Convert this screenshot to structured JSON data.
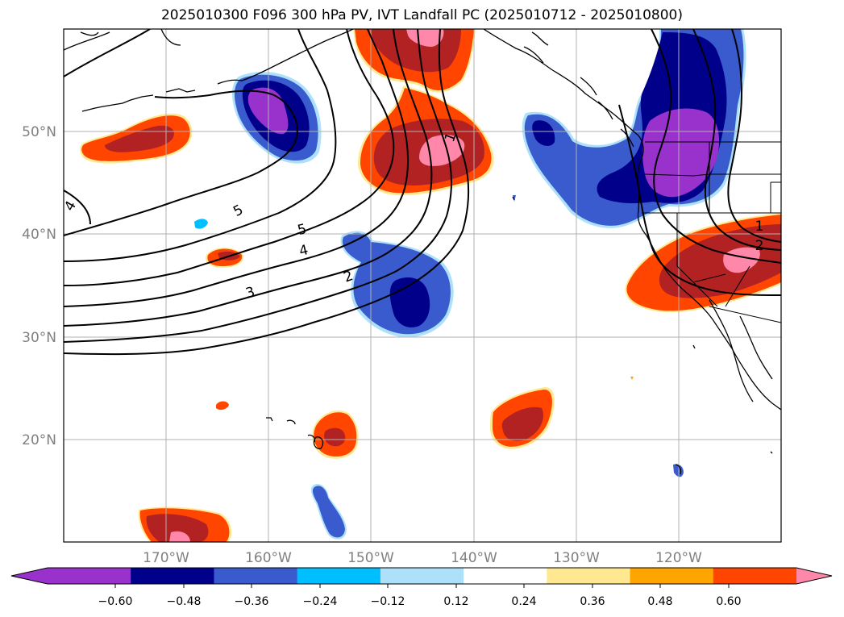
{
  "title": "2025010300 F096 300 hPa PV, IVT Landfall PC (2025010712 - 2025010800)",
  "map": {
    "lon_range": [
      -180,
      -110
    ],
    "lat_range": [
      10,
      60
    ],
    "lon_ticks": [
      "170°W",
      "160°W",
      "150°W",
      "140°W",
      "130°W",
      "120°W"
    ],
    "lat_ticks": [
      "50°N",
      "40°N",
      "30°N",
      "20°N"
    ],
    "gridlines": true,
    "contour_labels": [
      "5",
      "5",
      "4",
      "3",
      "2",
      "1",
      "2",
      "1",
      "4"
    ]
  },
  "colorbar": {
    "ticks": [
      "−0.60",
      "−0.48",
      "−0.36",
      "−0.24",
      "−0.12",
      "0.12",
      "0.24",
      "0.36",
      "0.48",
      "0.60"
    ],
    "colors": [
      "#9932CC",
      "#00008B",
      "#3A5BCD",
      "#00BFFF",
      "#ADE1FA",
      "#FFFFFF",
      "#FFE890",
      "#FFA500",
      "#FF4500",
      "#B22222",
      "#FF88AA"
    ],
    "extend": "both"
  }
}
